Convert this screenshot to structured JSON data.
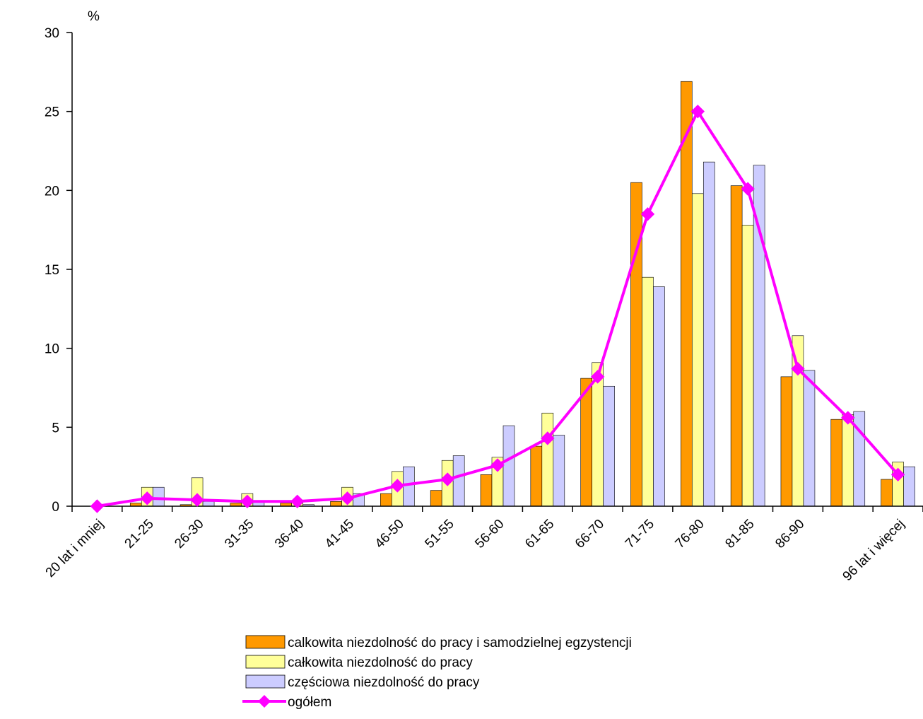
{
  "chart_data": {
    "type": "bar",
    "ylabel": "%",
    "ylim": [
      0,
      30
    ],
    "yticks": [
      0,
      5,
      10,
      15,
      20,
      25,
      30
    ],
    "categories": [
      "20 lat i mniej",
      "21-25",
      "26-30",
      "31-35",
      "36-40",
      "41-45",
      "46-50",
      "51-55",
      "56-60",
      "61-65",
      "66-70",
      "71-75",
      "76-80",
      "81-85",
      "86-90",
      "",
      "96 lat i więcej"
    ],
    "series": [
      {
        "name": "calkowita niezdolność do pracy i samodzielnej egzystencji",
        "kind": "bar",
        "color": "#FF9900",
        "values": [
          0,
          0.2,
          0.1,
          0.2,
          0.2,
          0.3,
          0.8,
          1.0,
          2.0,
          3.8,
          8.1,
          20.5,
          26.9,
          20.3,
          8.2,
          5.5,
          1.7
        ]
      },
      {
        "name": "całkowita niezdolność do pracy",
        "kind": "bar",
        "color": "#FFFF99",
        "values": [
          0,
          1.2,
          1.8,
          0.8,
          0.3,
          1.2,
          2.2,
          2.9,
          3.1,
          5.9,
          9.1,
          14.5,
          19.8,
          17.8,
          10.8,
          5.8,
          2.8
        ]
      },
      {
        "name": "częściowa niezdolność do pracy",
        "kind": "bar",
        "color": "#CCCCFF",
        "values": [
          0,
          1.2,
          0.3,
          0.3,
          0.1,
          0.8,
          2.5,
          3.2,
          5.1,
          4.5,
          7.6,
          13.9,
          21.8,
          21.6,
          8.6,
          6.0,
          2.5
        ]
      },
      {
        "name": "ogółem",
        "kind": "line",
        "color": "#FF00FF",
        "values": [
          0,
          0.5,
          0.4,
          0.3,
          0.3,
          0.5,
          1.3,
          1.7,
          2.6,
          4.3,
          8.2,
          18.5,
          25.0,
          20.1,
          8.7,
          5.6,
          2.0
        ]
      }
    ]
  }
}
